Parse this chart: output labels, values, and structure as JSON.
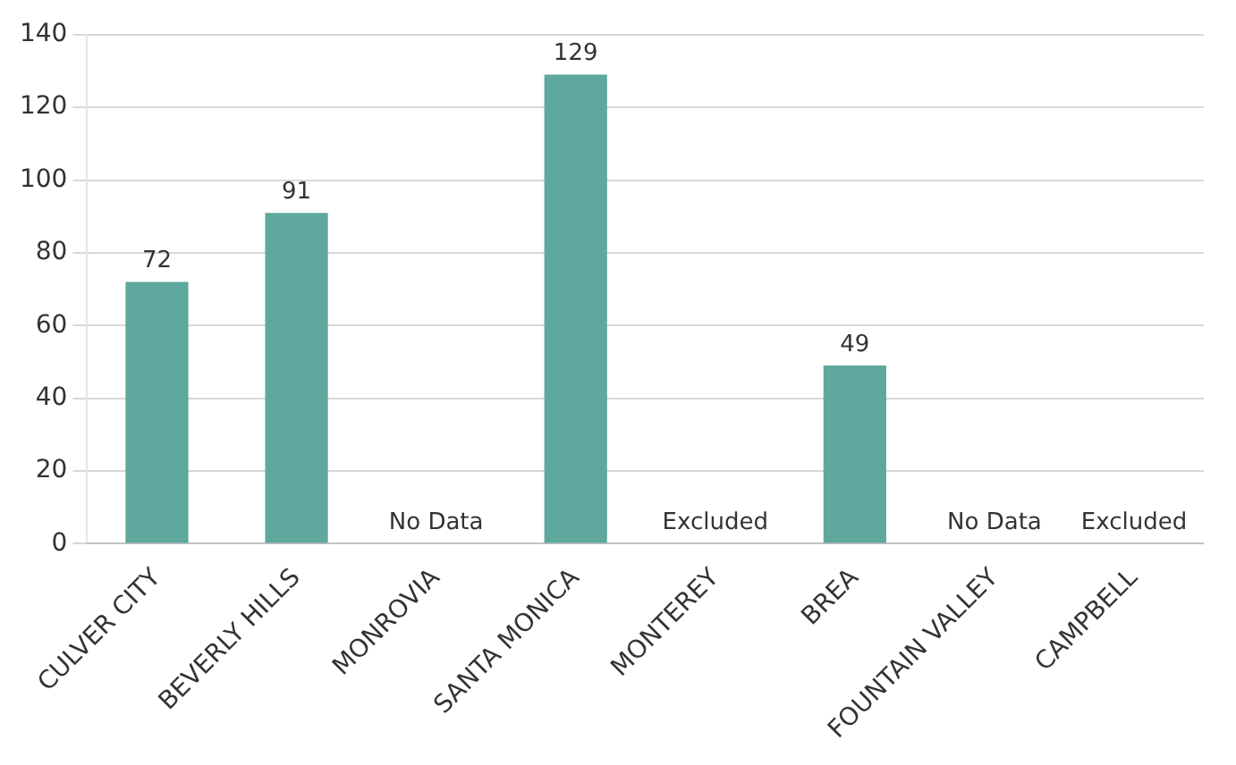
{
  "chart_data": {
    "type": "bar",
    "categories": [
      "CULVER CITY",
      "BEVERLY HILLS",
      "MONROVIA",
      "SANTA MONICA",
      "MONTEREY",
      "BREA",
      "FOUNTAIN VALLEY",
      "CAMPBELL"
    ],
    "values": [
      72,
      91,
      null,
      129,
      null,
      49,
      null,
      null
    ],
    "value_labels": [
      "72",
      "91",
      "No Data",
      "129",
      "Excluded",
      "49",
      "No Data",
      "Excluded"
    ],
    "color": "#5fa89e",
    "ylim": [
      0,
      140
    ],
    "yticks": [
      0,
      20,
      40,
      60,
      80,
      100,
      120,
      140
    ],
    "grid": "y",
    "legend": false
  }
}
